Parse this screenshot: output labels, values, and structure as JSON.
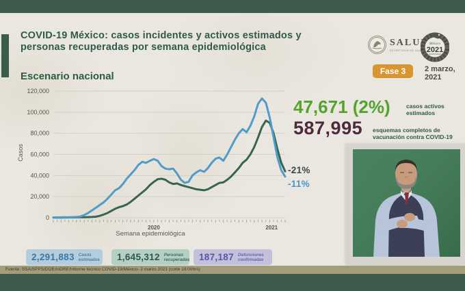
{
  "header": {
    "title_line1": "COVID-19 México: casos incidentes y activos estimados y",
    "title_line2": "personas recuperadas por semana epidemiológica",
    "subtitle": "Escenario nacional",
    "salud_logo_text": "SALUD",
    "salud_logo_subtext": "SECRETARÍA DE SALUD",
    "emblem_top_text": "México",
    "emblem_year": "2021",
    "phase_badge": "Fase 3",
    "date_line1": "2 marzo,",
    "date_line2": "2021",
    "phase_badge_color": "#d9952f"
  },
  "chart_data": {
    "type": "line",
    "title": "Escenario nacional",
    "xlabel": "Semana epidemiológica",
    "ylabel": "Casos",
    "ylim": [
      0,
      120000
    ],
    "yticks": [
      0,
      20000,
      40000,
      60000,
      80000,
      100000,
      120000
    ],
    "grid": true,
    "legend": "none",
    "x_axis": {
      "years": [
        {
          "year": "2020",
          "weeks": 53
        },
        {
          "year": "2021",
          "weeks": 8
        }
      ]
    },
    "series": [
      {
        "name": "Personas recuperadas",
        "color": "#35664f",
        "end_change_label": "-21%",
        "values": [
          100,
          150,
          200,
          250,
          300,
          350,
          400,
          450,
          500,
          600,
          700,
          1000,
          1800,
          3000,
          4500,
          6500,
          8500,
          10000,
          11000,
          12500,
          15000,
          18000,
          21000,
          24000,
          27000,
          31000,
          34000,
          36500,
          37000,
          36000,
          33500,
          32000,
          32500,
          31000,
          30000,
          29000,
          28000,
          27000,
          26500,
          26000,
          27000,
          29000,
          31000,
          33000,
          33500,
          36000,
          39000,
          43000,
          47000,
          52000,
          55000,
          60000,
          67000,
          76000,
          86000,
          92000,
          90000,
          80000,
          65000,
          52000,
          44000
        ]
      },
      {
        "name": "Casos incidentes y activos estimados",
        "color": "#4f9cc8",
        "end_change_label": "-11%",
        "values": [
          300,
          350,
          400,
          450,
          500,
          600,
          700,
          1200,
          2500,
          4500,
          7000,
          9500,
          12000,
          14500,
          18000,
          22000,
          26000,
          28000,
          32000,
          37000,
          41000,
          45000,
          50000,
          53000,
          52000,
          54000,
          55500,
          54000,
          49000,
          46500,
          46000,
          46500,
          42000,
          36000,
          33000,
          34000,
          40000,
          43000,
          45000,
          43500,
          47000,
          52000,
          56000,
          57000,
          54000,
          60000,
          67000,
          74000,
          80000,
          84000,
          81000,
          87000,
          96000,
          108000,
          113000,
          109000,
          95000,
          76000,
          57000,
          45000,
          39000
        ]
      }
    ]
  },
  "annotations": {
    "upper": {
      "text": "-21%",
      "color": "#3a464c"
    },
    "lower": {
      "text": "-11%",
      "color": "#4a94c4"
    }
  },
  "stats": {
    "active_value": "47,671 (2%)",
    "active_label_line1": "casos activos",
    "active_label_line2": "estimados",
    "active_color": "#54a32f",
    "vaccination_value": "587,995",
    "vaccination_label_line1": "esquemas completos de",
    "vaccination_label_line2": "vacunación contra COVID-19",
    "vaccination_color": "#4e2b3c"
  },
  "totals": [
    {
      "value": "2,291,883",
      "label_line1": "Casos",
      "label_line2": "estimados",
      "accent": "#3579a9"
    },
    {
      "value": "1,645,312",
      "label_line1": "Personas",
      "label_line2": "recuperadas",
      "accent": "#2c5847"
    },
    {
      "value": "187,187",
      "label_line1": "Defunciones",
      "label_line2": "confirmadas",
      "accent": "#5a54a9"
    }
  ],
  "footer": {
    "source": "Fuente: SSA/SPPS/DGE/InDRE/Informe técnico COVID-19/México- 2 marzo 2021 (corte 19:00hrs)"
  }
}
